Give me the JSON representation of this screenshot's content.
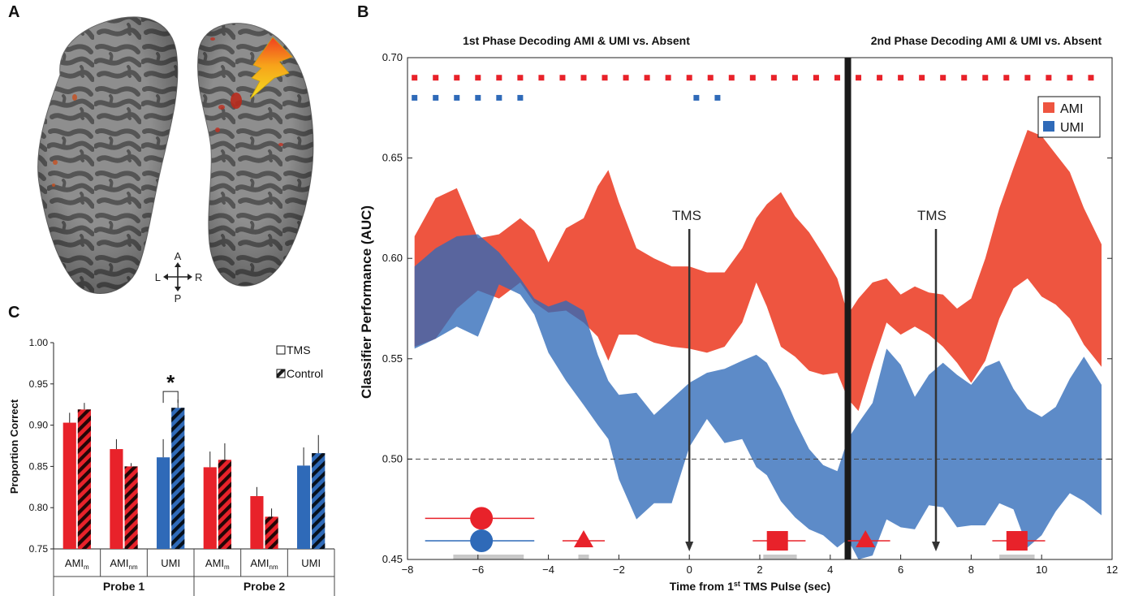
{
  "panels": {
    "a": "A",
    "b": "B",
    "c": "C"
  },
  "brain": {
    "orientation": {
      "anterior": "A",
      "posterior": "P",
      "left": "L",
      "right": "R"
    }
  },
  "chart_data": [
    {
      "type": "area",
      "panel": "B",
      "title_left": "1st Phase Decoding AMI & UMI vs. Absent",
      "title_right": "2nd  Phase Decoding AMI & UMI vs. Absent",
      "xlabel": "Time from 1st TMS Pulse (sec)",
      "xlabel_parts": {
        "before": "Time from 1",
        "sup": "st",
        "after": " TMS Pulse (sec)"
      },
      "ylabel": "Classifier Performance (AUC)",
      "xlim": [
        -8,
        12
      ],
      "ylim": [
        0.45,
        0.7
      ],
      "xticks": [
        -8,
        -6,
        -4,
        -2,
        0,
        2,
        4,
        6,
        8,
        10,
        12
      ],
      "xtick_labels": [
        "−8",
        "−6",
        "−4",
        "−2",
        "0",
        "2",
        "4",
        "6",
        "8",
        "10",
        "12"
      ],
      "yticks": [
        0.45,
        0.5,
        0.55,
        0.6,
        0.65,
        0.7
      ],
      "ytick_labels": [
        "0.45",
        "0.50",
        "0.55",
        "0.60",
        "0.65",
        "0.70"
      ],
      "chance_line": 0.5,
      "phase_divider_x": 4.5,
      "legend": {
        "placement": "top-right",
        "entries": [
          "AMI",
          "UMI"
        ]
      },
      "colors": {
        "AMI": "#ee5540",
        "UMI": "#2f6ab8",
        "overlap": "#4b4e92"
      },
      "tms_markers": [
        {
          "label": "TMS",
          "x": 0
        },
        {
          "label": "TMS",
          "x": 7
        }
      ],
      "series": [
        {
          "name": "AMI",
          "x": [
            -7.8,
            -7.2,
            -6.6,
            -6.0,
            -5.4,
            -4.8,
            -4.4,
            -4.0,
            -3.5,
            -3.0,
            -2.6,
            -2.3,
            -2.0,
            -1.5,
            -1.0,
            -0.5,
            0.0,
            0.5,
            1.0,
            1.5,
            1.9,
            2.2,
            2.6,
            3.0,
            3.4,
            3.8,
            4.2,
            4.5,
            4.8,
            5.2,
            5.6,
            6.0,
            6.4,
            6.8,
            7.2,
            7.6,
            8.0,
            8.4,
            8.8,
            9.2,
            9.6,
            10.0,
            10.4,
            10.8,
            11.2,
            11.7
          ],
          "upper": [
            0.611,
            0.63,
            0.635,
            0.61,
            0.612,
            0.62,
            0.614,
            0.598,
            0.615,
            0.62,
            0.636,
            0.644,
            0.628,
            0.605,
            0.6,
            0.596,
            0.596,
            0.593,
            0.593,
            0.605,
            0.62,
            0.627,
            0.633,
            0.621,
            0.613,
            0.602,
            0.59,
            0.572,
            0.58,
            0.588,
            0.59,
            0.582,
            0.586,
            0.583,
            0.582,
            0.575,
            0.58,
            0.6,
            0.625,
            0.645,
            0.664,
            0.661,
            0.652,
            0.643,
            0.625,
            0.607
          ],
          "lower": [
            0.556,
            0.56,
            0.575,
            0.584,
            0.58,
            0.588,
            0.578,
            0.573,
            0.574,
            0.568,
            0.561,
            0.549,
            0.562,
            0.562,
            0.558,
            0.556,
            0.555,
            0.553,
            0.556,
            0.568,
            0.588,
            0.576,
            0.556,
            0.551,
            0.544,
            0.542,
            0.543,
            0.53,
            0.524,
            0.547,
            0.568,
            0.562,
            0.566,
            0.562,
            0.556,
            0.548,
            0.538,
            0.549,
            0.57,
            0.585,
            0.59,
            0.581,
            0.577,
            0.57,
            0.557,
            0.546
          ]
        },
        {
          "name": "UMI",
          "x": [
            -7.8,
            -7.2,
            -6.6,
            -6.0,
            -5.4,
            -4.8,
            -4.4,
            -4.0,
            -3.5,
            -3.0,
            -2.6,
            -2.3,
            -2.0,
            -1.5,
            -1.0,
            -0.5,
            0.0,
            0.5,
            1.0,
            1.5,
            1.9,
            2.2,
            2.6,
            3.0,
            3.4,
            3.8,
            4.2,
            4.5,
            4.8,
            5.2,
            5.6,
            6.0,
            6.4,
            6.8,
            7.2,
            7.6,
            8.0,
            8.4,
            8.8,
            9.2,
            9.6,
            10.0,
            10.4,
            10.8,
            11.2,
            11.7
          ],
          "upper": [
            0.596,
            0.605,
            0.611,
            0.612,
            0.603,
            0.59,
            0.58,
            0.576,
            0.579,
            0.574,
            0.552,
            0.539,
            0.532,
            0.533,
            0.522,
            0.53,
            0.538,
            0.543,
            0.545,
            0.549,
            0.552,
            0.548,
            0.535,
            0.519,
            0.505,
            0.497,
            0.494,
            0.51,
            0.518,
            0.528,
            0.555,
            0.547,
            0.531,
            0.542,
            0.548,
            0.542,
            0.537,
            0.546,
            0.549,
            0.535,
            0.525,
            0.521,
            0.526,
            0.54,
            0.551,
            0.537
          ],
          "lower": [
            0.555,
            0.56,
            0.566,
            0.561,
            0.587,
            0.582,
            0.572,
            0.553,
            0.539,
            0.527,
            0.517,
            0.51,
            0.49,
            0.47,
            0.478,
            0.478,
            0.506,
            0.52,
            0.508,
            0.51,
            0.496,
            0.492,
            0.479,
            0.471,
            0.465,
            0.462,
            0.456,
            0.46,
            0.45,
            0.452,
            0.47,
            0.466,
            0.465,
            0.477,
            0.476,
            0.466,
            0.467,
            0.467,
            0.478,
            0.475,
            0.456,
            0.462,
            0.474,
            0.483,
            0.479,
            0.472
          ]
        }
      ],
      "significance": {
        "AMI": {
          "y": 0.69,
          "x": [
            -7.8,
            -7.2,
            -6.6,
            -6.0,
            -5.4,
            -4.8,
            -4.2,
            -3.6,
            -3.0,
            -2.4,
            -1.8,
            -1.2,
            -0.6,
            0.0,
            0.6,
            1.2,
            1.8,
            2.4,
            3.0,
            3.6,
            4.2,
            4.8,
            5.4,
            6.0,
            6.6,
            7.2,
            7.8,
            8.4,
            9.0,
            9.6,
            10.2,
            10.8,
            11.4
          ]
        },
        "UMI": {
          "y": 0.68,
          "x": [
            -7.8,
            -7.2,
            -6.6,
            -6.0,
            -5.4,
            -4.8,
            0.2,
            0.8
          ]
        }
      },
      "stim_icons": [
        {
          "shape": "circle",
          "color": "#e8222a",
          "x": -5.9,
          "y": 0.4705,
          "line": [
            -7.5,
            -4.4
          ],
          "gray_bar": [
            -6.7,
            -4.7
          ]
        },
        {
          "shape": "circle",
          "color": "#2f6ab8",
          "x": -5.9,
          "y": 0.4593,
          "line": [
            -7.5,
            -4.4
          ]
        },
        {
          "shape": "triangle",
          "color": "#e8222a",
          "x": -3.0,
          "y": 0.4593,
          "line": [
            -3.6,
            -2.4
          ],
          "gray_bar": [
            -3.15,
            -2.85
          ]
        },
        {
          "shape": "square",
          "color": "#e8222a",
          "x": 2.5,
          "y": 0.4593,
          "line": [
            1.8,
            3.3
          ],
          "gray_bar": [
            2.1,
            3.05
          ]
        },
        {
          "shape": "triangle",
          "color": "#e8222a",
          "x": 5.0,
          "y": 0.4593,
          "line": [
            4.5,
            5.7
          ]
        },
        {
          "shape": "square",
          "color": "#e8222a",
          "x": 9.3,
          "y": 0.4593,
          "line": [
            8.6,
            10.1
          ],
          "gray_bar": [
            8.8,
            9.8
          ]
        }
      ]
    },
    {
      "type": "bar",
      "panel": "C",
      "ylabel": "Proportion Correct",
      "ylim": [
        0.75,
        1.0
      ],
      "yticks": [
        0.75,
        0.8,
        0.85,
        0.9,
        0.95,
        1.0
      ],
      "ytick_labels": [
        "0.75",
        "0.80",
        "0.85",
        "0.90",
        "0.95",
        "1.00"
      ],
      "legend": {
        "placement": "top-right",
        "entries": [
          "TMS",
          "Control"
        ]
      },
      "significance_label": "*",
      "groups": [
        {
          "name": "Probe 1",
          "categories": [
            {
              "label": "AMI",
              "sub": "m",
              "color": "#e8222a",
              "TMS": 0.903,
              "TMS_err": 0.012,
              "Control": 0.919,
              "Control_err": 0.008
            },
            {
              "label": "AMI",
              "sub": "nm",
              "color": "#e8222a",
              "TMS": 0.871,
              "TMS_err": 0.012,
              "Control": 0.85,
              "Control_err": 0.004
            },
            {
              "label": "UMI",
              "sub": "",
              "color": "#2f6ab8",
              "TMS": 0.861,
              "TMS_err": 0.022,
              "Control": 0.921,
              "Control_err": 0.01,
              "significant": true
            }
          ]
        },
        {
          "name": "Probe 2",
          "categories": [
            {
              "label": "AMI",
              "sub": "m",
              "color": "#e8222a",
              "TMS": 0.849,
              "TMS_err": 0.019,
              "Control": 0.858,
              "Control_err": 0.02
            },
            {
              "label": "AMI",
              "sub": "nm",
              "color": "#e8222a",
              "TMS": 0.814,
              "TMS_err": 0.011,
              "Control": 0.789,
              "Control_err": 0.01
            },
            {
              "label": "UMI",
              "sub": "",
              "color": "#2f6ab8",
              "TMS": 0.851,
              "TMS_err": 0.022,
              "Control": 0.866,
              "Control_err": 0.022
            }
          ]
        }
      ]
    }
  ]
}
